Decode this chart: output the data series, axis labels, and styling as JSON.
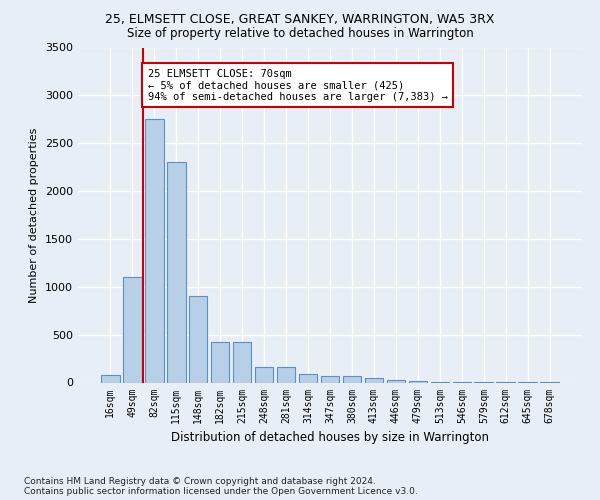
{
  "title1": "25, ELMSETT CLOSE, GREAT SANKEY, WARRINGTON, WA5 3RX",
  "title2": "Size of property relative to detached houses in Warrington",
  "xlabel": "Distribution of detached houses by size in Warrington",
  "ylabel": "Number of detached properties",
  "categories": [
    "16sqm",
    "49sqm",
    "82sqm",
    "115sqm",
    "148sqm",
    "182sqm",
    "215sqm",
    "248sqm",
    "281sqm",
    "314sqm",
    "347sqm",
    "380sqm",
    "413sqm",
    "446sqm",
    "479sqm",
    "513sqm",
    "546sqm",
    "579sqm",
    "612sqm",
    "645sqm",
    "678sqm"
  ],
  "values": [
    75,
    1100,
    2750,
    2300,
    900,
    420,
    420,
    160,
    160,
    85,
    65,
    65,
    50,
    30,
    20,
    10,
    5,
    3,
    2,
    1,
    1
  ],
  "bar_color": "#b8cfe8",
  "bar_edge_color": "#5b8fc9",
  "vline_index": 1.5,
  "marker_line1": "25 ELMSETT CLOSE: 70sqm",
  "marker_line2": "← 5% of detached houses are smaller (425)",
  "marker_line3": "94% of semi-detached houses are larger (7,383) →",
  "vline_color": "#cc0000",
  "annotation_box_edge": "#cc0000",
  "footnote1": "Contains HM Land Registry data © Crown copyright and database right 2024.",
  "footnote2": "Contains public sector information licensed under the Open Government Licence v3.0.",
  "ylim": [
    0,
    3500
  ],
  "yticks": [
    0,
    500,
    1000,
    1500,
    2000,
    2500,
    3000,
    3500
  ],
  "bg_color": "#e8eef5",
  "plot_bg_color": "#e8eef5",
  "grid_color": "#ffffff",
  "title1_fontsize": 9,
  "title2_fontsize": 8.5,
  "ylabel_fontsize": 8,
  "xlabel_fontsize": 8.5,
  "tick_fontsize": 7,
  "annotation_fontsize": 7.5,
  "footnote_fontsize": 6.5
}
